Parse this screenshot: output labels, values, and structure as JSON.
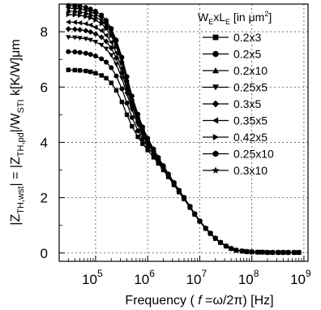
{
  "chart_data": {
    "type": "line",
    "xlabel": {
      "prefix": "Frequency ( ",
      "var": "f",
      "mid": " =ω/2π",
      "suffix": ") [Hz]"
    },
    "ylabel": "|Z_TH,wst| = |Z_TH,pd|/W_STI k[K/W]μm",
    "ylabel_parts": {
      "z1": "|Z",
      "sub1": "TH,wst",
      "eq": "| = |Z",
      "sub2": "TH,pd",
      "div": "|/W",
      "sub3": "STI",
      "unit": " k[K/W]μm"
    },
    "x_scale": "log",
    "xlim": [
      20000,
      1200000000
    ],
    "ylim": [
      -0.3,
      9.0
    ],
    "x_ticks": [
      {
        "value": 100000,
        "base": "10",
        "exp": "5"
      },
      {
        "value": 1000000,
        "base": "10",
        "exp": "6"
      },
      {
        "value": 10000000,
        "base": "10",
        "exp": "7"
      },
      {
        "value": 100000000,
        "base": "10",
        "exp": "8"
      },
      {
        "value": 1000000000,
        "base": "10",
        "exp": "9"
      }
    ],
    "y_ticks": [
      0,
      2,
      4,
      6,
      8
    ],
    "grid": true,
    "legend_position": "top-right",
    "legend_title": {
      "w": "W",
      "w_sub": "E",
      "x": "xL",
      "l_sub": "E",
      "rest": " [in μm",
      "sup": "2",
      "close": "]"
    },
    "x": [
      30000,
      40000,
      50000,
      65000,
      80000,
      100000,
      130000,
      160000,
      200000,
      250000,
      320000,
      400000,
      500000,
      650000,
      800000,
      1000000,
      1300000,
      1600000,
      2000000,
      2500000,
      3200000,
      4000000,
      5000000,
      6500000,
      8000000,
      10000000,
      13000000,
      16000000,
      20000000,
      25000000,
      32000000,
      40000000,
      50000000,
      65000000,
      80000000,
      100000000,
      130000000,
      160000000,
      200000000,
      250000000,
      320000000,
      400000000,
      500000000,
      650000000,
      800000000
    ],
    "series": [
      {
        "name": "0.2x3",
        "marker": "square",
        "values": [
          6.62,
          6.61,
          6.6,
          6.58,
          6.55,
          6.5,
          6.42,
          6.32,
          6.15,
          5.88,
          5.46,
          5.0,
          4.58,
          4.2,
          3.95,
          3.72,
          3.46,
          3.24,
          3.0,
          2.75,
          2.46,
          2.2,
          1.95,
          1.64,
          1.39,
          1.14,
          0.88,
          0.7,
          0.52,
          0.38,
          0.25,
          0.16,
          0.1,
          0.07,
          0.05,
          0.04,
          0.03,
          0.03,
          0.02,
          0.02,
          0.02,
          0.02,
          0.02,
          0.02,
          0.02
        ]
      },
      {
        "name": "0.2x5",
        "marker": "circle",
        "values": [
          7.28,
          7.27,
          7.25,
          7.22,
          7.18,
          7.12,
          7.02,
          6.9,
          6.7,
          6.4,
          5.94,
          5.42,
          4.9,
          4.42,
          4.12,
          3.84,
          3.54,
          3.3,
          3.05,
          2.78,
          2.49,
          2.22,
          1.97,
          1.66,
          1.4,
          1.15,
          0.89,
          0.71,
          0.53,
          0.38,
          0.25,
          0.16,
          0.1,
          0.07,
          0.05,
          0.04,
          0.03,
          0.03,
          0.02,
          0.02,
          0.02,
          0.02,
          0.02,
          0.02,
          0.02
        ]
      },
      {
        "name": "0.2x10",
        "marker": "triangle-up",
        "values": [
          8.75,
          8.74,
          8.72,
          8.68,
          8.62,
          8.54,
          8.4,
          8.22,
          7.95,
          7.55,
          6.96,
          6.28,
          5.6,
          4.96,
          4.52,
          4.12,
          3.74,
          3.44,
          3.15,
          2.85,
          2.54,
          2.26,
          2.0,
          1.68,
          1.42,
          1.16,
          0.9,
          0.72,
          0.53,
          0.38,
          0.25,
          0.16,
          0.1,
          0.07,
          0.05,
          0.04,
          0.03,
          0.03,
          0.02,
          0.02,
          0.02,
          0.02,
          0.02,
          0.02,
          0.02
        ]
      },
      {
        "name": "0.25x5",
        "marker": "triangle-down",
        "values": [
          7.8,
          7.79,
          7.77,
          7.74,
          7.7,
          7.63,
          7.52,
          7.38,
          7.15,
          6.82,
          6.32,
          5.75,
          5.18,
          4.64,
          4.28,
          3.96,
          3.62,
          3.36,
          3.09,
          2.81,
          2.51,
          2.24,
          1.98,
          1.67,
          1.41,
          1.15,
          0.89,
          0.71,
          0.53,
          0.38,
          0.25,
          0.16,
          0.1,
          0.07,
          0.05,
          0.04,
          0.03,
          0.03,
          0.02,
          0.02,
          0.02,
          0.02,
          0.02,
          0.02,
          0.02
        ]
      },
      {
        "name": "0.3x5",
        "marker": "diamond",
        "values": [
          8.1,
          8.09,
          8.07,
          8.04,
          7.99,
          7.92,
          7.8,
          7.65,
          7.41,
          7.05,
          6.52,
          5.92,
          5.32,
          4.75,
          4.37,
          4.02,
          3.67,
          3.39,
          3.11,
          2.82,
          2.52,
          2.24,
          1.99,
          1.67,
          1.41,
          1.15,
          0.89,
          0.71,
          0.53,
          0.38,
          0.25,
          0.16,
          0.1,
          0.07,
          0.05,
          0.04,
          0.03,
          0.03,
          0.02,
          0.02,
          0.02,
          0.02,
          0.02,
          0.02,
          0.02
        ]
      },
      {
        "name": "0.35x5",
        "marker": "triangle-left",
        "values": [
          8.35,
          8.34,
          8.32,
          8.29,
          8.24,
          8.16,
          8.04,
          7.87,
          7.62,
          7.24,
          6.68,
          6.05,
          5.42,
          4.83,
          4.42,
          4.06,
          3.7,
          3.41,
          3.12,
          2.83,
          2.52,
          2.25,
          1.99,
          1.67,
          1.41,
          1.15,
          0.89,
          0.71,
          0.53,
          0.38,
          0.25,
          0.16,
          0.1,
          0.07,
          0.05,
          0.04,
          0.03,
          0.03,
          0.02,
          0.02,
          0.02,
          0.02,
          0.02,
          0.02,
          0.02
        ]
      },
      {
        "name": "0.42x5",
        "marker": "triangle-right",
        "values": [
          8.62,
          8.61,
          8.59,
          8.55,
          8.5,
          8.42,
          8.29,
          8.11,
          7.85,
          7.45,
          6.87,
          6.2,
          5.55,
          4.92,
          4.5,
          4.11,
          3.73,
          3.43,
          3.14,
          2.84,
          2.53,
          2.25,
          2.0,
          1.68,
          1.42,
          1.16,
          0.9,
          0.71,
          0.53,
          0.38,
          0.25,
          0.16,
          0.1,
          0.07,
          0.05,
          0.04,
          0.03,
          0.03,
          0.02,
          0.02,
          0.02,
          0.02,
          0.02,
          0.02,
          0.02
        ]
      },
      {
        "name": "0.25x10",
        "marker": "hexagon",
        "values": [
          8.95,
          8.94,
          8.92,
          8.88,
          8.82,
          8.74,
          8.6,
          8.41,
          8.12,
          7.7,
          7.08,
          6.38,
          5.68,
          5.02,
          4.56,
          4.15,
          3.76,
          3.46,
          3.16,
          2.86,
          2.55,
          2.27,
          2.01,
          1.69,
          1.42,
          1.16,
          0.9,
          0.72,
          0.54,
          0.38,
          0.25,
          0.16,
          0.1,
          0.07,
          0.05,
          0.04,
          0.03,
          0.03,
          0.02,
          0.02,
          0.02,
          0.02,
          0.02,
          0.02,
          0.02
        ]
      },
      {
        "name": "0.3x10",
        "marker": "star",
        "values": [
          8.85,
          8.84,
          8.82,
          8.78,
          8.72,
          8.64,
          8.5,
          8.32,
          8.04,
          7.63,
          7.02,
          6.33,
          5.64,
          4.99,
          4.54,
          4.14,
          3.75,
          3.45,
          3.15,
          2.85,
          2.54,
          2.26,
          2.0,
          1.68,
          1.42,
          1.16,
          0.9,
          0.72,
          0.53,
          0.38,
          0.25,
          0.16,
          0.1,
          0.07,
          0.05,
          0.04,
          0.03,
          0.03,
          0.02,
          0.02,
          0.02,
          0.02,
          0.02,
          0.02,
          0.02
        ]
      }
    ]
  }
}
